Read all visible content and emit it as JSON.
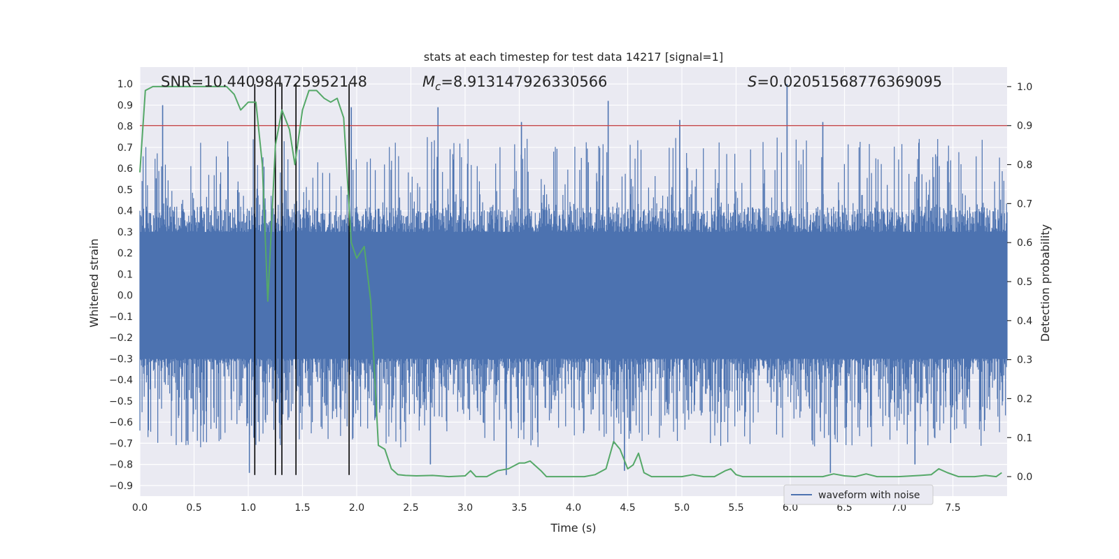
{
  "chart_data": {
    "type": "line",
    "title": "stats at each timestep for test data 14217 [signal=1]",
    "xlabel": "Time (s)",
    "ylabel_left": "Whitened strain",
    "ylabel_right": "Detection probability",
    "xlim": [
      0.0,
      8.0
    ],
    "ylim_left": [
      -0.95,
      1.08
    ],
    "ylim_right": [
      -0.05,
      1.05
    ],
    "x_ticks": [
      "0.0",
      "0.5",
      "1.0",
      "1.5",
      "2.0",
      "2.5",
      "3.0",
      "3.5",
      "4.0",
      "4.5",
      "5.0",
      "5.5",
      "6.0",
      "6.5",
      "7.0",
      "7.5"
    ],
    "y_ticks_left": [
      "-0.9",
      "-0.8",
      "-0.7",
      "-0.6",
      "-0.5",
      "-0.4",
      "-0.3",
      "-0.2",
      "-0.1",
      "0.0",
      "0.1",
      "0.2",
      "0.3",
      "0.4",
      "0.5",
      "0.6",
      "0.7",
      "0.8",
      "0.9",
      "1.0"
    ],
    "y_ticks_right": [
      "0.0",
      "0.1",
      "0.2",
      "0.3",
      "0.4",
      "0.5",
      "0.6",
      "0.7",
      "0.8",
      "0.9",
      "1.0"
    ],
    "grid": true,
    "legend_position": "lower-right",
    "stats": {
      "snr": "SNR=10.440984725952148",
      "mc_symbol": "M",
      "mc_sub": "c",
      "mc_value": "=8.913147926330566",
      "s_symbol": "S",
      "s_value": "=0.02051568776369095"
    },
    "series": [
      {
        "name": "waveform with noise",
        "axis": "left",
        "color": "#4c72b0",
        "description_values": {
          "typical_band": [
            -0.3,
            0.3
          ],
          "sample_count": 1600
        },
        "peaks": [
          {
            "x": 0.21,
            "y": 0.9
          },
          {
            "x": 2.75,
            "y": 0.89
          },
          {
            "x": 3.52,
            "y": 0.82
          },
          {
            "x": 4.32,
            "y": 0.92
          },
          {
            "x": 4.98,
            "y": 0.83
          },
          {
            "x": 5.97,
            "y": 1.0
          },
          {
            "x": 6.3,
            "y": 0.82
          },
          {
            "x": 1.95,
            "y": 0.89
          },
          {
            "x": 1.01,
            "y": -0.84
          },
          {
            "x": 3.38,
            "y": -0.85
          },
          {
            "x": 6.37,
            "y": -0.84
          },
          {
            "x": 4.47,
            "y": -0.83
          },
          {
            "x": 2.68,
            "y": -0.8
          },
          {
            "x": 7.15,
            "y": -0.8
          }
        ]
      },
      {
        "name": "detection probability",
        "axis": "right",
        "color": "#55a868",
        "x": [
          0.0,
          0.05,
          0.12,
          0.2,
          0.3,
          0.4,
          0.5,
          0.6,
          0.7,
          0.8,
          0.87,
          0.93,
          1.0,
          1.07,
          1.13,
          1.18,
          1.25,
          1.31,
          1.38,
          1.43,
          1.5,
          1.56,
          1.63,
          1.7,
          1.76,
          1.82,
          1.88,
          1.95,
          2.0,
          2.07,
          2.13,
          2.2,
          2.26,
          2.32,
          2.38,
          2.45,
          2.55,
          2.7,
          2.85,
          3.0,
          3.05,
          3.1,
          3.2,
          3.3,
          3.4,
          3.5,
          3.55,
          3.6,
          3.7,
          3.75,
          3.8,
          3.9,
          4.0,
          4.1,
          4.2,
          4.3,
          4.37,
          4.43,
          4.5,
          4.55,
          4.6,
          4.65,
          4.72,
          4.8,
          4.9,
          5.0,
          5.1,
          5.2,
          5.3,
          5.4,
          5.45,
          5.5,
          5.56,
          5.62,
          5.7,
          5.9,
          6.2,
          6.3,
          6.4,
          6.5,
          6.6,
          6.7,
          6.8,
          7.0,
          7.2,
          7.3,
          7.37,
          7.45,
          7.55,
          7.7,
          7.8,
          7.9,
          7.95
        ],
        "y": [
          0.78,
          0.99,
          1.0,
          1.0,
          1.0,
          1.0,
          1.0,
          1.0,
          1.0,
          1.0,
          0.98,
          0.94,
          0.96,
          0.96,
          0.8,
          0.45,
          0.85,
          0.94,
          0.89,
          0.8,
          0.94,
          0.99,
          0.99,
          0.97,
          0.96,
          0.97,
          0.92,
          0.6,
          0.56,
          0.59,
          0.45,
          0.08,
          0.07,
          0.02,
          0.005,
          0.003,
          0.002,
          0.003,
          0.0,
          0.002,
          0.015,
          0.0,
          0.0,
          0.015,
          0.02,
          0.035,
          0.035,
          0.04,
          0.015,
          0.0,
          0.0,
          0.0,
          0.0,
          0.0,
          0.005,
          0.02,
          0.09,
          0.07,
          0.02,
          0.03,
          0.06,
          0.01,
          0.0,
          0.0,
          0.0,
          0.0,
          0.005,
          0.0,
          0.0,
          0.015,
          0.02,
          0.005,
          0.0,
          0.0,
          0.0,
          0.0,
          0.0,
          0.0,
          0.007,
          0.002,
          0.0,
          0.007,
          0.0,
          0.0,
          0.003,
          0.005,
          0.02,
          0.01,
          0.0,
          0.0,
          0.003,
          0.0,
          0.01
        ]
      }
    ],
    "threshold": {
      "axis": "right",
      "y": 0.9,
      "color": "#c44e52"
    },
    "vlines": {
      "color": "#000000",
      "x": [
        1.06,
        1.25,
        1.31,
        1.44,
        1.93
      ]
    },
    "legend": {
      "label": "waveform with noise"
    }
  }
}
